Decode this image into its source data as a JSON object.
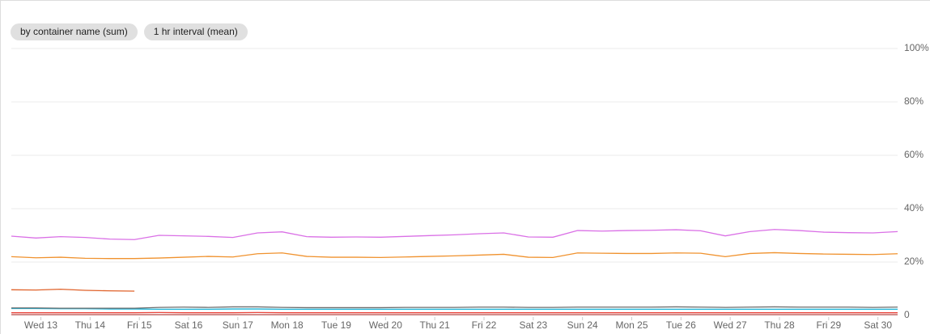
{
  "chips": [
    "by container name (sum)",
    "1 hr interval (mean)"
  ],
  "chart_data": {
    "type": "line",
    "x": [
      -0.6,
      -0.1,
      0.4,
      0.9,
      1.4,
      1.9,
      2.4,
      2.9,
      3.4,
      3.9,
      4.4,
      4.9,
      5.4,
      5.9,
      6.4,
      6.9,
      7.4,
      7.9,
      8.4,
      8.9,
      9.4,
      9.9,
      10.4,
      10.9,
      11.4,
      11.9,
      12.4,
      12.9,
      13.4,
      13.9,
      14.4,
      14.9,
      15.4,
      15.9,
      16.4,
      16.9,
      17.4
    ],
    "xlim": [
      -0.6,
      17.4
    ],
    "xticks": [
      {
        "value": 0,
        "label": "Wed 13"
      },
      {
        "value": 1,
        "label": "Thu 14"
      },
      {
        "value": 2,
        "label": "Fri 15"
      },
      {
        "value": 3,
        "label": "Sat 16"
      },
      {
        "value": 4,
        "label": "Sun 17"
      },
      {
        "value": 5,
        "label": "Mon 18"
      },
      {
        "value": 6,
        "label": "Tue 19"
      },
      {
        "value": 7,
        "label": "Wed 20"
      },
      {
        "value": 8,
        "label": "Thu 21"
      },
      {
        "value": 9,
        "label": "Fri 22"
      },
      {
        "value": 10,
        "label": "Sat 23"
      },
      {
        "value": 11,
        "label": "Sun 24"
      },
      {
        "value": 12,
        "label": "Mon 25"
      },
      {
        "value": 13,
        "label": "Tue 26"
      },
      {
        "value": 14,
        "label": "Wed 27"
      },
      {
        "value": 15,
        "label": "Thu 28"
      },
      {
        "value": 16,
        "label": "Fri 29"
      },
      {
        "value": 17,
        "label": "Sat 30"
      }
    ],
    "ylim": [
      0,
      100
    ],
    "yticks": [
      0,
      {
        "value": 20,
        "label": "20%"
      },
      {
        "value": 40,
        "label": "40%"
      },
      {
        "value": 60,
        "label": "60%"
      },
      {
        "value": 80,
        "label": "80%"
      },
      {
        "value": 100,
        "label": "100%"
      }
    ],
    "grid": true,
    "series": [
      {
        "color": "#da70e6",
        "values": [
          29.7,
          29.0,
          29.5,
          29.2,
          28.6,
          28.4,
          30.0,
          29.8,
          29.6,
          29.2,
          30.9,
          31.3,
          29.5,
          29.3,
          29.4,
          29.3,
          29.6,
          29.9,
          30.2,
          30.6,
          30.9,
          29.4,
          29.3,
          31.8,
          31.6,
          31.8,
          31.9,
          32.1,
          31.7,
          29.8,
          31.4,
          32.2,
          31.8,
          31.2,
          31.0,
          30.9,
          31.4
        ]
      },
      {
        "color": "#f0922e",
        "values": [
          22.0,
          21.6,
          21.8,
          21.4,
          21.3,
          21.3,
          21.5,
          21.8,
          22.1,
          21.9,
          23.1,
          23.4,
          22.1,
          21.8,
          21.8,
          21.7,
          21.9,
          22.1,
          22.3,
          22.6,
          22.9,
          21.8,
          21.7,
          23.4,
          23.3,
          23.2,
          23.2,
          23.4,
          23.3,
          22.0,
          23.2,
          23.5,
          23.2,
          23.0,
          22.9,
          22.8,
          23.1
        ]
      },
      {
        "color": "#e0622a",
        "values": [
          9.6,
          9.5,
          9.8,
          9.4,
          9.2,
          9.1,
          null,
          null,
          null,
          null,
          null,
          null,
          null,
          null,
          null,
          null,
          null,
          null,
          null,
          null,
          null,
          null,
          null,
          null,
          null,
          null,
          null,
          null,
          null,
          null,
          null,
          null,
          null,
          null,
          null,
          null,
          null
        ]
      },
      {
        "color": "#17b2d6",
        "values": [
          2.6,
          2.6,
          2.5,
          2.5,
          2.4,
          2.4,
          2.3,
          2.3,
          2.3,
          2.4,
          2.4,
          2.3,
          2.3,
          2.3,
          2.3,
          2.3,
          2.3,
          2.3,
          2.3,
          2.3,
          2.3,
          2.3,
          2.3,
          2.3,
          2.3,
          2.3,
          2.3,
          2.3,
          2.3,
          2.3,
          2.3,
          2.3,
          2.3,
          2.3,
          2.3,
          2.3,
          2.3
        ]
      },
      {
        "color": "#6e6e6e",
        "values": [
          2.8,
          2.8,
          2.7,
          2.7,
          2.7,
          2.7,
          3.0,
          3.1,
          3.0,
          3.2,
          3.2,
          3.0,
          2.9,
          2.9,
          2.9,
          2.9,
          3.0,
          3.0,
          3.0,
          3.1,
          3.1,
          3.0,
          3.0,
          3.1,
          3.1,
          3.1,
          3.1,
          3.2,
          3.1,
          3.0,
          3.1,
          3.2,
          3.1,
          3.1,
          3.1,
          3.0,
          3.1
        ]
      },
      {
        "color": "#e8453c",
        "values": [
          1.0,
          1.0,
          1.0,
          1.0,
          1.0,
          1.0,
          1.1,
          1.0,
          1.0,
          1.0,
          1.1,
          1.0,
          1.0,
          1.0,
          1.0,
          1.0,
          1.0,
          1.0,
          1.0,
          1.0,
          1.0,
          1.0,
          1.0,
          1.0,
          1.0,
          1.0,
          1.0,
          1.0,
          1.0,
          1.0,
          1.0,
          1.0,
          1.0,
          1.0,
          1.0,
          1.0,
          1.0
        ]
      },
      {
        "color": "#c0504d",
        "values": [
          0.3,
          0.3,
          0.3,
          0.3,
          0.3,
          0.3,
          0.3,
          0.3,
          0.3,
          0.3,
          0.3,
          0.3,
          0.3,
          0.3,
          0.3,
          0.3,
          0.3,
          0.3,
          0.3,
          0.3,
          0.3,
          0.3,
          0.3,
          0.3,
          0.3,
          0.3,
          0.3,
          0.3,
          0.3,
          0.3,
          0.3,
          0.3,
          0.3,
          0.3,
          0.3,
          0.3,
          0.3
        ]
      }
    ]
  }
}
